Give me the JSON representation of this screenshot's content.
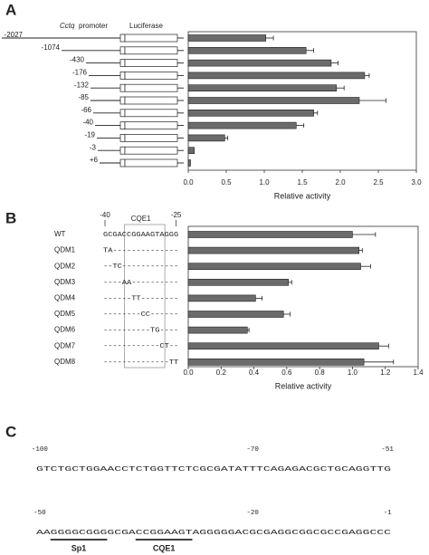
{
  "panels": {
    "a": "A",
    "b": "B",
    "c": "C"
  },
  "chart_data": [
    {
      "type": "bar",
      "orientation": "horizontal",
      "construct_labels": {
        "gene": "Cctq",
        "promoter": "promoter",
        "reporter": "Luciferase"
      },
      "categories": [
        "-2027",
        "-1074",
        "-430",
        "-176",
        "-132",
        "-85",
        "-66",
        "-40",
        "-19",
        "-3",
        "+6"
      ],
      "values": [
        1.02,
        1.55,
        1.88,
        2.32,
        1.95,
        2.25,
        1.65,
        1.42,
        0.48,
        0.08,
        0.03
      ],
      "errors": [
        0.1,
        0.1,
        0.09,
        0.06,
        0.1,
        0.35,
        0.05,
        0.1,
        0.04,
        null,
        null
      ],
      "xlabel": "Relative activity",
      "xlim": [
        0,
        3
      ],
      "xticks": [
        {
          "value": 0,
          "label": "0.0"
        },
        0.5,
        {
          "value": 1,
          "label": "1.0"
        },
        1.5,
        {
          "value": 2,
          "label": "2.0"
        },
        2.5,
        {
          "value": 3,
          "label": "3.0"
        }
      ],
      "color": "#6b6b6b"
    },
    {
      "type": "bar",
      "orientation": "horizontal",
      "sequence_header": {
        "start": "-40",
        "end": "-25",
        "element": "CQE1"
      },
      "categories": [
        "WT",
        "QDM1",
        "QDM2",
        "QDM3",
        "QDM4",
        "QDM5",
        "QDM6",
        "QDM7",
        "QDM8"
      ],
      "sequences": [
        "GCGACCGGAAGTAGGG",
        "TA--------------",
        "--TC------------",
        "----AA----------",
        "------TT--------",
        "--------CC------",
        "----------TG----",
        "------------CT--",
        "--------------TT"
      ],
      "values": [
        1.0,
        1.04,
        1.05,
        0.61,
        0.41,
        0.58,
        0.36,
        1.16,
        1.07
      ],
      "errors": [
        0.14,
        0.02,
        0.06,
        0.02,
        0.04,
        0.04,
        0.01,
        0.06,
        0.18
      ],
      "xlabel": "Relative activity",
      "xlim": [
        0,
        1.4
      ],
      "xticks": [
        {
          "value": 0,
          "label": "0.0"
        },
        0.2,
        0.4,
        0.6,
        0.8,
        {
          "value": 1,
          "label": "1.0"
        },
        1.2,
        1.4
      ],
      "color": "#6b6b6b"
    }
  ],
  "sequence_c": {
    "lines": [
      {
        "positions": [
          "-100",
          "-70",
          "-51"
        ],
        "seq": "GTCTGCTGGAACCTCTGGTTCTCGCGATATTTCAGAGACGCTGCAGGTTG"
      },
      {
        "positions": [
          "-50",
          "-20",
          "-1"
        ],
        "seq": "AAGGGGCGGGGCGACCGGAAGTAGGGGGACGCGAGGCGGCGCCGAGGCCC"
      }
    ],
    "motifs": [
      "Sp1",
      "CQE1"
    ]
  }
}
